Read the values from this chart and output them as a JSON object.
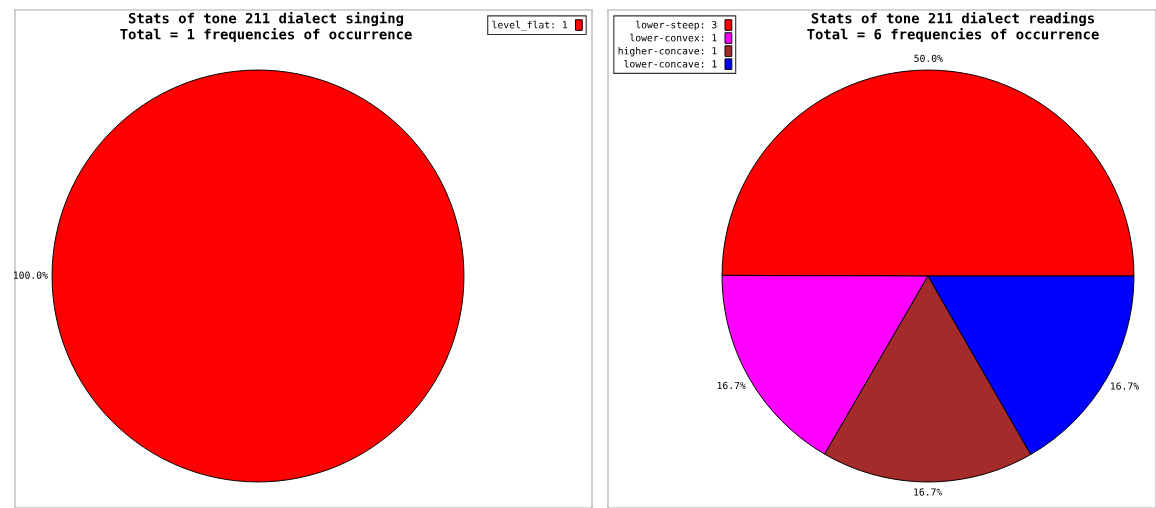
{
  "chart_data": [
    {
      "type": "pie",
      "title": "Stats of tone 211 dialect singing",
      "subtitle": "Total = 1 frequencies of occurrence",
      "categories": [
        "level_flat: 1"
      ],
      "values": [
        100.0
      ],
      "colors": [
        "#ff0000"
      ],
      "value_labels": [
        "100.0%"
      ],
      "legend": "top right"
    },
    {
      "type": "pie",
      "title": "Stats of tone 211 dialect readings",
      "subtitle": "Total = 6 frequencies of occurrence",
      "categories": [
        "lower-steep: 3",
        "lower-convex: 1",
        "higher-concave: 1",
        "lower-concave: 1"
      ],
      "values": [
        50.0,
        16.7,
        16.7,
        16.7
      ],
      "colors": [
        "#ff0000",
        "#ff00ff",
        "#a52a2a",
        "#0000ff"
      ],
      "value_labels": [
        "50.0%",
        "16.7%",
        "16.7%",
        "16.7%"
      ],
      "legend": "top left"
    }
  ]
}
